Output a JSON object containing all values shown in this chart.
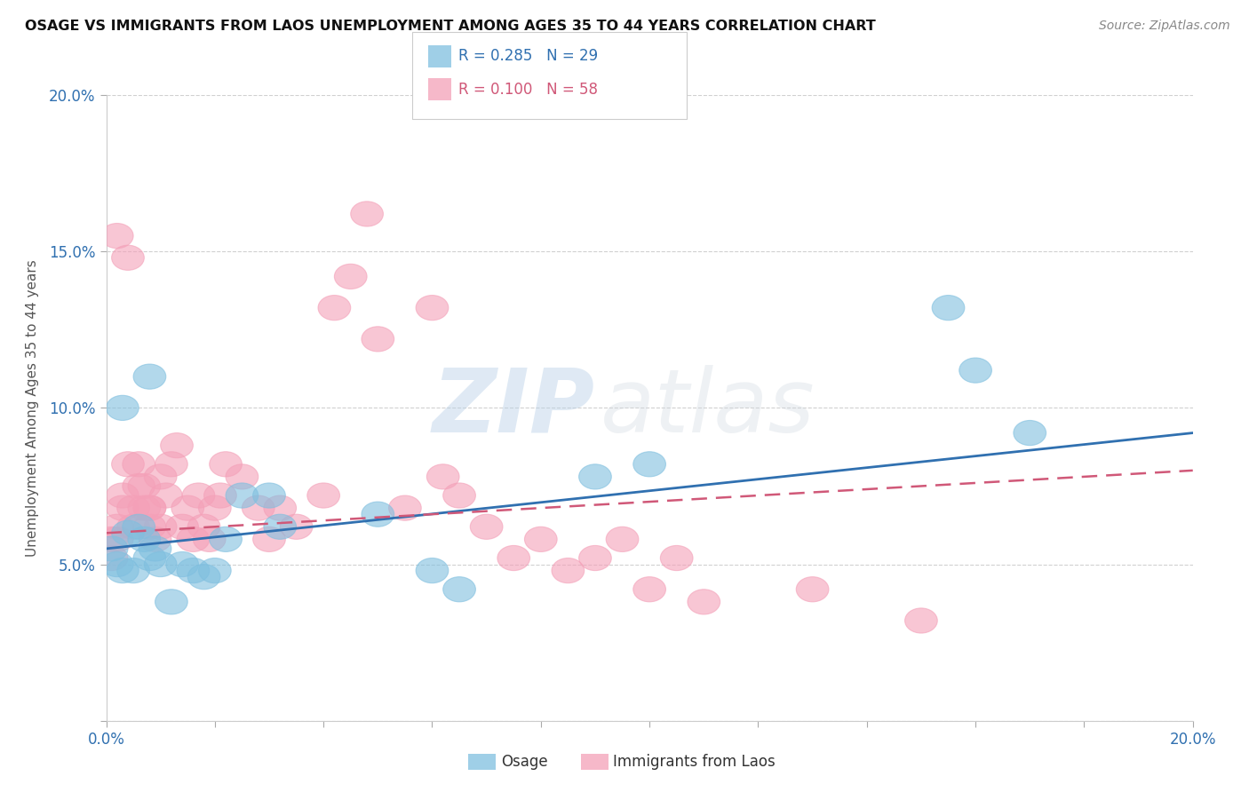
{
  "title": "OSAGE VS IMMIGRANTS FROM LAOS UNEMPLOYMENT AMONG AGES 35 TO 44 YEARS CORRELATION CHART",
  "source": "Source: ZipAtlas.com",
  "ylabel": "Unemployment Among Ages 35 to 44 years",
  "xlim": [
    0.0,
    0.2
  ],
  "ylim": [
    0.0,
    0.2
  ],
  "R_osage": 0.285,
  "N_osage": 29,
  "R_laos": 0.1,
  "N_laos": 58,
  "osage_color": "#7fbfdf",
  "laos_color": "#f4a0b8",
  "osage_line_color": "#3070b0",
  "laos_line_color": "#d05878",
  "background_color": "#ffffff",
  "grid_color": "#d0d0d0",
  "watermark_zip": "ZIP",
  "watermark_atlas": "atlas",
  "osage_x": [
    0.001,
    0.002,
    0.003,
    0.004,
    0.005,
    0.006,
    0.007,
    0.008,
    0.009,
    0.01,
    0.012,
    0.014,
    0.016,
    0.018,
    0.02,
    0.022,
    0.025,
    0.03,
    0.032,
    0.05,
    0.06,
    0.065,
    0.09,
    0.1,
    0.155,
    0.16,
    0.17,
    0.003,
    0.008
  ],
  "osage_y": [
    0.055,
    0.05,
    0.048,
    0.06,
    0.048,
    0.062,
    0.058,
    0.052,
    0.055,
    0.05,
    0.038,
    0.05,
    0.048,
    0.046,
    0.048,
    0.058,
    0.072,
    0.072,
    0.062,
    0.066,
    0.048,
    0.042,
    0.078,
    0.082,
    0.132,
    0.112,
    0.092,
    0.1,
    0.11
  ],
  "laos_x": [
    0.001,
    0.001,
    0.002,
    0.002,
    0.003,
    0.003,
    0.004,
    0.005,
    0.005,
    0.006,
    0.006,
    0.007,
    0.007,
    0.008,
    0.008,
    0.009,
    0.01,
    0.01,
    0.011,
    0.012,
    0.013,
    0.014,
    0.015,
    0.016,
    0.017,
    0.018,
    0.019,
    0.02,
    0.021,
    0.022,
    0.025,
    0.028,
    0.03,
    0.032,
    0.035,
    0.04,
    0.042,
    0.045,
    0.048,
    0.05,
    0.055,
    0.06,
    0.062,
    0.065,
    0.07,
    0.075,
    0.08,
    0.085,
    0.09,
    0.095,
    0.1,
    0.105,
    0.11,
    0.13,
    0.15,
    0.002,
    0.004,
    0.008
  ],
  "laos_y": [
    0.058,
    0.052,
    0.062,
    0.058,
    0.068,
    0.072,
    0.082,
    0.062,
    0.068,
    0.075,
    0.082,
    0.068,
    0.075,
    0.062,
    0.068,
    0.058,
    0.078,
    0.062,
    0.072,
    0.082,
    0.088,
    0.062,
    0.068,
    0.058,
    0.072,
    0.062,
    0.058,
    0.068,
    0.072,
    0.082,
    0.078,
    0.068,
    0.058,
    0.068,
    0.062,
    0.072,
    0.132,
    0.142,
    0.162,
    0.122,
    0.068,
    0.132,
    0.078,
    0.072,
    0.062,
    0.052,
    0.058,
    0.048,
    0.052,
    0.058,
    0.042,
    0.052,
    0.038,
    0.042,
    0.032,
    0.155,
    0.148,
    0.068
  ],
  "ytick_labels": [
    "",
    "5.0%",
    "10.0%",
    "15.0%",
    "20.0%"
  ],
  "ytick_vals": [
    0.0,
    0.05,
    0.1,
    0.15,
    0.2
  ],
  "xtick_vals": [
    0.0,
    0.02,
    0.04,
    0.06,
    0.08,
    0.1,
    0.12,
    0.14,
    0.16,
    0.18,
    0.2
  ]
}
